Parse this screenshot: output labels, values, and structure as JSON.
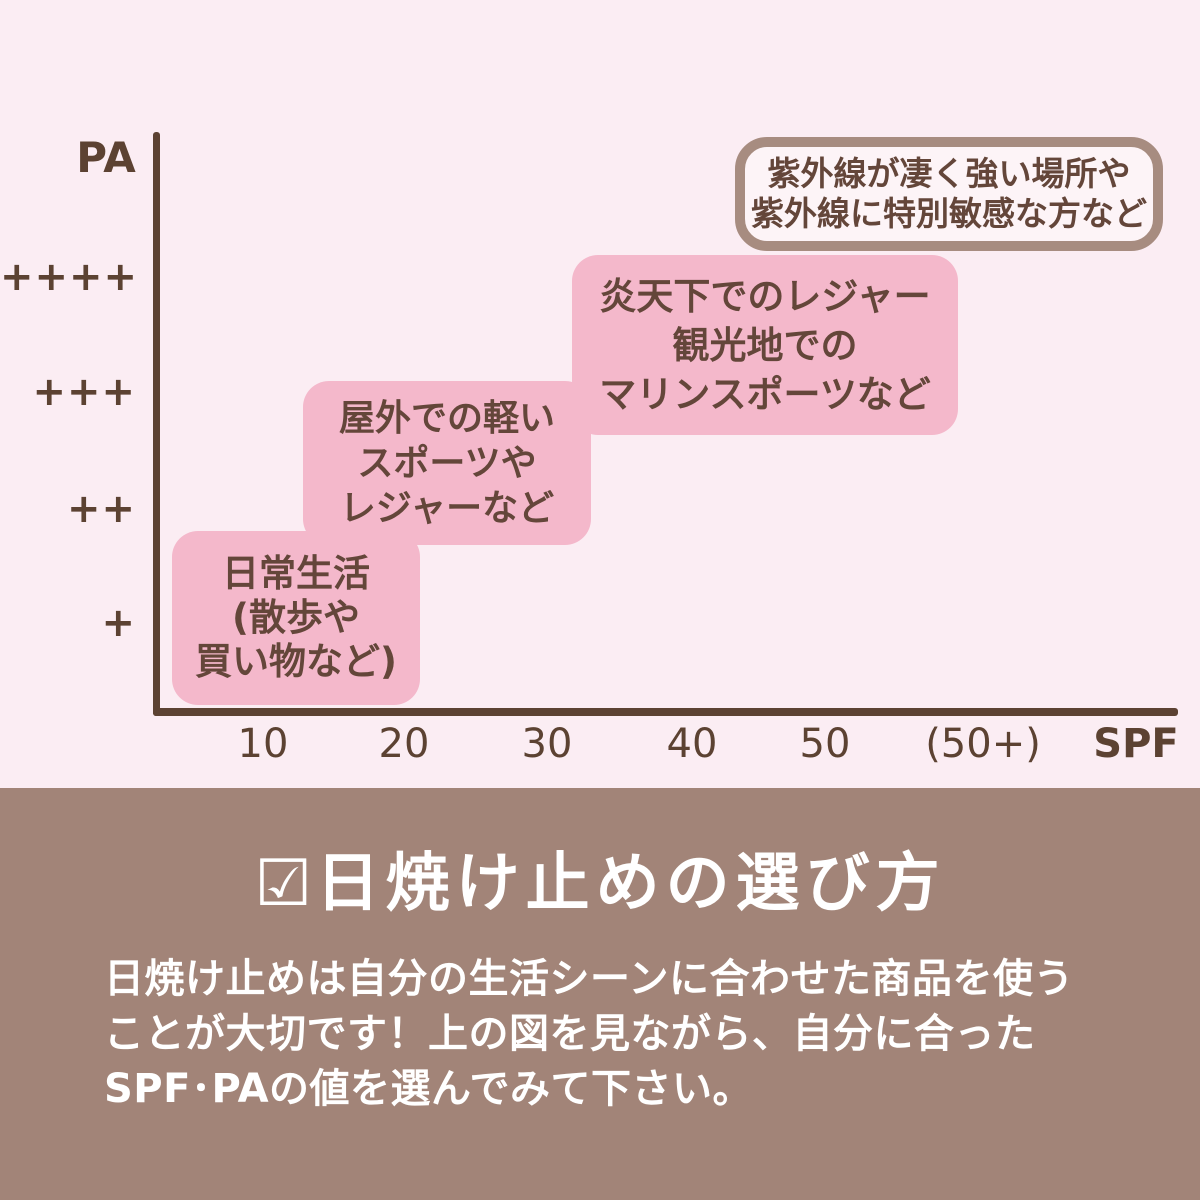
{
  "chart": {
    "pa_axis_label": "PA",
    "spf_axis_label": "SPF",
    "y_ticks": [
      "++++",
      "+++",
      "++",
      "+"
    ],
    "x_ticks": [
      "10",
      "20",
      "30",
      "40",
      "50",
      "(50+)"
    ],
    "boxes": {
      "daily": {
        "lines": [
          "日常生活",
          "(散歩や",
          "買い物など)"
        ]
      },
      "outdoor": {
        "lines": [
          "屋外での軽い",
          "スポーツや",
          "レジャーなど"
        ]
      },
      "leisure": {
        "lines": [
          "炎天下でのレジャー",
          "観光地での",
          "マリンスポーツなど"
        ]
      },
      "extreme": {
        "lines": [
          "紫外線が凄く強い場所や",
          "紫外線に特別敏感な方など"
        ]
      }
    }
  },
  "footer": {
    "checkbox_glyph": "☑",
    "title": "日焼け止めの選び方",
    "body_lines": [
      "日焼け止めは自分の生活シーンに合わせた商品を使う",
      "ことが大切です！上の図を見ながら、自分に合った",
      "SPF･PAの値を選んでみて下さい。"
    ]
  },
  "colors": {
    "background_top": "#fbedf3",
    "background_bottom": "#a28478",
    "scenario_box_pink": "#f4b8cb",
    "axis_brown": "#5c4232",
    "box_text_brown": "#64463a",
    "callout_border": "#a78c80",
    "callout_fill": "#fdf4f7",
    "footer_text": "#ffffff"
  },
  "chart_data": {
    "type": "table",
    "title": "日焼け止めの選び方（SPF・PA 使用シーン図）",
    "xlabel": "SPF",
    "ylabel": "PA",
    "x_tick_labels": [
      "10",
      "20",
      "30",
      "40",
      "50",
      "(50+)"
    ],
    "y_tick_labels": [
      "+",
      "++",
      "+++",
      "++++"
    ],
    "grid": false,
    "legend": false,
    "annotations": [
      {
        "scenario": "日常生活(散歩や買い物など)",
        "spf": "10〜20",
        "pa": "+"
      },
      {
        "scenario": "屋外での軽いスポーツやレジャーなど",
        "spf": "20〜30",
        "pa": "++〜+++"
      },
      {
        "scenario": "炎天下でのレジャー・観光地でのマリンスポーツなど",
        "spf": "30〜50",
        "pa": "+++〜++++"
      },
      {
        "scenario": "紫外線が凄く強い場所や紫外線に特別敏感な方など",
        "spf": "50〜(50+)",
        "pa": "++++以上"
      }
    ]
  }
}
